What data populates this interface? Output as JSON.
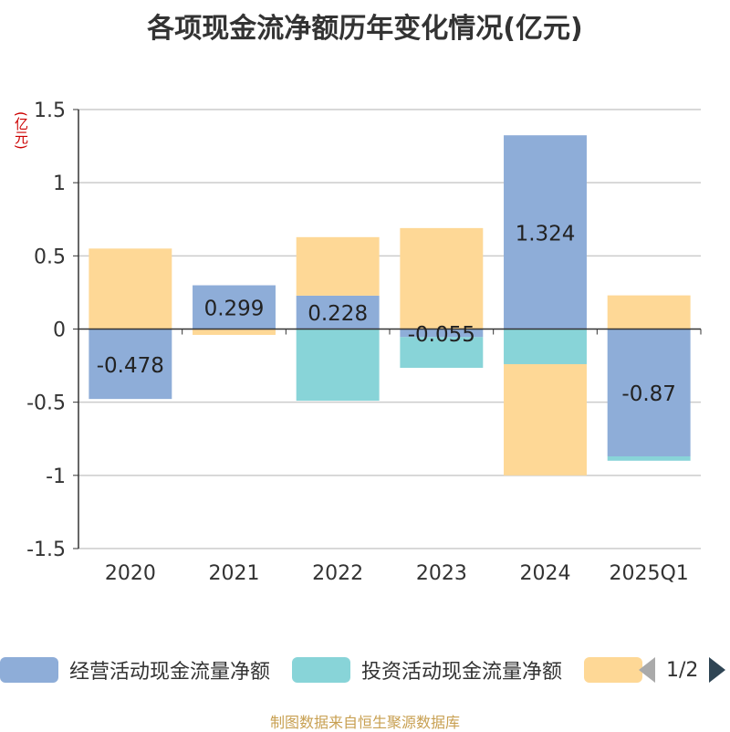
{
  "chart_data": {
    "type": "bar",
    "stacked": true,
    "title": "各项现金流净额历年变化情况(亿元)",
    "ylabel": "(亿元)",
    "categories": [
      "2020",
      "2021",
      "2022",
      "2023",
      "2024",
      "2025Q1"
    ],
    "ylim": [
      -1.5,
      1.5
    ],
    "yticks": [
      1.5,
      1,
      0.5,
      0,
      -0.5,
      -1,
      -1.5
    ],
    "ytick_labels": [
      "1.5",
      "1",
      "0.5",
      "0",
      "-0.5",
      "-1",
      "-1.5"
    ],
    "grid": true,
    "legend_position": "bottom",
    "series": [
      {
        "name": "经营活动现金流量净额",
        "color": "#8eadd8",
        "values": [
          -0.478,
          0.299,
          0.228,
          -0.055,
          1.324,
          -0.87
        ],
        "labels": [
          "-0.478",
          "0.299",
          "0.228",
          "-0.055",
          "1.324",
          "-0.87"
        ]
      },
      {
        "name": "投资活动现金流量净额",
        "color": "#88d4d8",
        "values": [
          0,
          0,
          -0.49,
          -0.21,
          -0.24,
          -0.03
        ]
      },
      {
        "name": "",
        "color": "#fed896",
        "values": [
          0.55,
          -0.04,
          0.4,
          0.69,
          -0.76,
          0.23
        ]
      }
    ]
  },
  "legend": {
    "items": [
      {
        "label": "经营活动现金流量净额",
        "color": "#8eadd8"
      },
      {
        "label": "投资活动现金流量净额",
        "color": "#88d4d8"
      },
      {
        "label": "",
        "color": "#fed896"
      }
    ],
    "page": "1/2"
  },
  "footer": "制图数据来自恒生聚源数据库"
}
